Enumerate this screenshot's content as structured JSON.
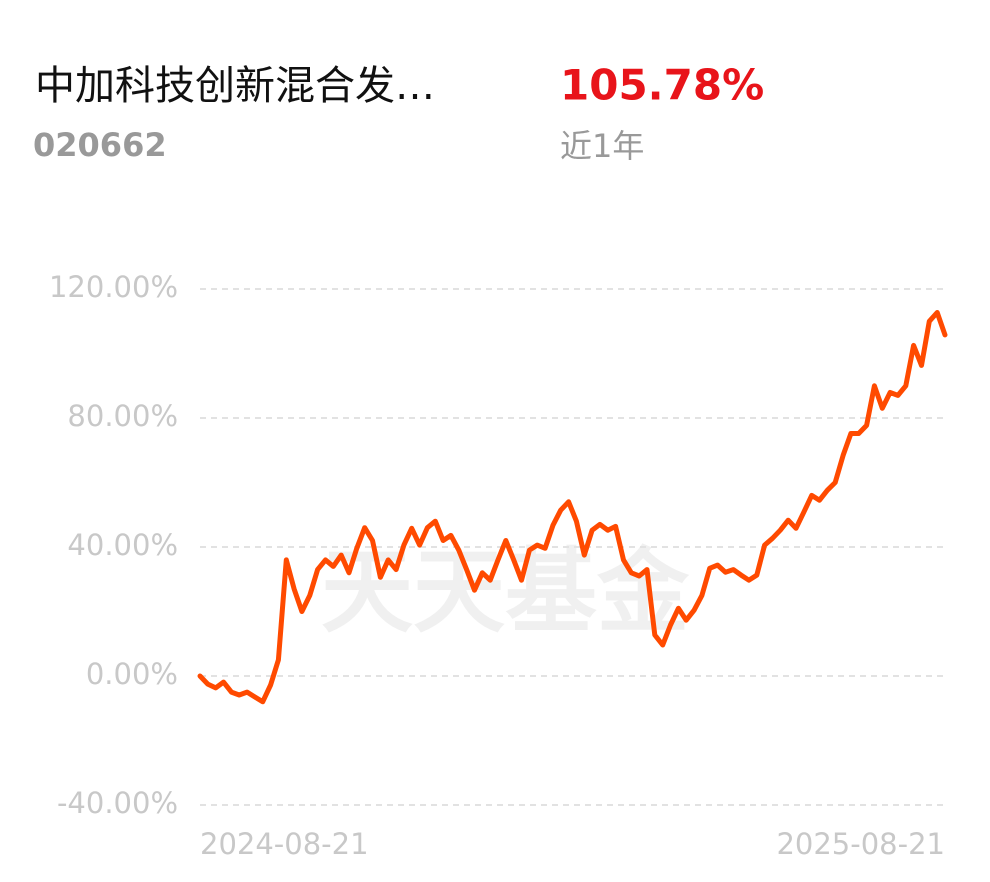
{
  "header": {
    "title": "中加科技创新混合发…",
    "code": "020662",
    "return": "105.78%",
    "period": "近1年"
  },
  "chart_data": {
    "type": "line",
    "watermark": "天天基金",
    "categories": [
      "2024-08-21",
      null,
      null,
      null,
      null,
      null,
      null,
      null,
      null,
      null,
      null,
      null,
      null,
      null,
      null,
      null,
      null,
      null,
      null,
      null,
      null,
      null,
      null,
      null,
      null,
      null,
      null,
      null,
      null,
      null,
      null,
      null,
      null,
      null,
      null,
      null,
      null,
      null,
      null,
      null,
      null,
      null,
      null,
      null,
      null,
      null,
      null,
      null,
      null,
      null,
      null,
      null,
      null,
      null,
      null,
      null,
      null,
      null,
      null,
      null,
      null,
      null,
      null,
      null,
      null,
      null,
      null,
      null,
      null,
      null,
      null,
      null,
      null,
      null,
      null,
      null,
      null,
      null,
      null,
      null,
      null,
      null,
      null,
      null,
      null,
      null,
      null,
      null,
      null,
      null,
      null,
      null,
      null,
      null,
      null,
      "2025-08-21"
    ],
    "series": [
      {
        "color": "#ff4a00",
        "values": [
          0,
          -2.5,
          -3.7,
          -1.9,
          -5,
          -5.9,
          -5,
          -6.5,
          -8,
          -2.8,
          5,
          36,
          27,
          20,
          25,
          33,
          36,
          34,
          37.5,
          32,
          39.6,
          46,
          42,
          30.6,
          36,
          33,
          40.6,
          45.8,
          40.6,
          46,
          48,
          42,
          43.6,
          39,
          33,
          26.6,
          32,
          29.7,
          36,
          42,
          36,
          29.7,
          39,
          40.6,
          39.6,
          46.7,
          51.4,
          54,
          48,
          37.5,
          45.2,
          47,
          45.2,
          46.4,
          36,
          32,
          31,
          33,
          12.7,
          9.6,
          15.8,
          21,
          17.3,
          20.4,
          25,
          33.4,
          34.4,
          32.2,
          33,
          31.3,
          29.7,
          31.3,
          40.6,
          42.7,
          45.2,
          48.3,
          45.8,
          50.8,
          56,
          54.5,
          57.6,
          60,
          68.4,
          75.2,
          75.2,
          77.7,
          90,
          83,
          87.9,
          87,
          90,
          102.5,
          96.3,
          110,
          112.7,
          105.78
        ]
      }
    ],
    "ylim": [
      -40,
      120
    ],
    "yticks": [
      {
        "value": -40,
        "label": "-40.00%"
      },
      {
        "value": 0,
        "label": "0.00%"
      },
      {
        "value": 40,
        "label": "40.00%"
      },
      {
        "value": 80,
        "label": "80.00%"
      },
      {
        "value": 120,
        "label": "120.00%"
      }
    ],
    "grid": true
  }
}
